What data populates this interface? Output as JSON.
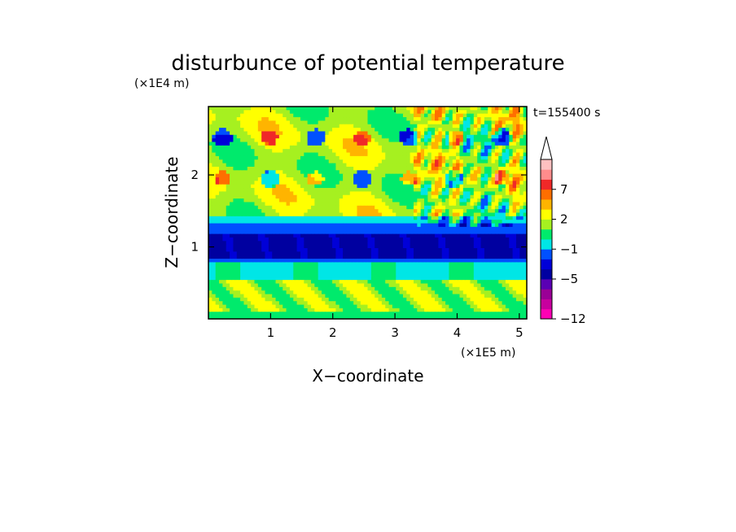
{
  "chart_data": {
    "type": "heatmap",
    "title": "disturbunce of potential temperature",
    "xlabel": "X−coordinate",
    "ylabel": "Z−coordinate",
    "x_multiplier_label": "(×1E5 m)",
    "y_multiplier_label": "(×1E4 m)",
    "time_label": "t=155400 s",
    "xlim": [
      0,
      5.12
    ],
    "ylim": [
      0,
      2.95
    ],
    "x_ticks": [
      {
        "value": 1,
        "label": "1"
      },
      {
        "value": 2,
        "label": "2"
      },
      {
        "value": 3,
        "label": "3"
      },
      {
        "value": 4,
        "label": "4"
      },
      {
        "value": 5,
        "label": "5"
      }
    ],
    "y_ticks": [
      {
        "value": 1,
        "label": "1"
      },
      {
        "value": 2,
        "label": "2"
      }
    ],
    "colorbar": {
      "extend": "max",
      "levels": [
        {
          "color": "#ff00b4",
          "label": "−12"
        },
        {
          "color": "#c8009e",
          "label": ""
        },
        {
          "color": "#9a0096",
          "label": ""
        },
        {
          "color": "#5a00b4",
          "label": ""
        },
        {
          "color": "#0000a0",
          "label": "−5"
        },
        {
          "color": "#0000d8",
          "label": ""
        },
        {
          "color": "#0050ff",
          "label": ""
        },
        {
          "color": "#00e6e6",
          "label": "−1"
        },
        {
          "color": "#00ea6c",
          "label": ""
        },
        {
          "color": "#a6f020",
          "label": ""
        },
        {
          "color": "#ffff00",
          "label": "2"
        },
        {
          "color": "#ffb400",
          "label": ""
        },
        {
          "color": "#ff6e00",
          "label": ""
        },
        {
          "color": "#f02828",
          "label": "7"
        },
        {
          "color": "#ff8c8c",
          "label": ""
        },
        {
          "color": "#ffc0c0",
          "label": ""
        }
      ]
    },
    "field": {
      "cols": 90,
      "rows": 60,
      "description_keys": [
        "background_band_z",
        "strong_negative_band_z",
        "wave_region_x"
      ],
      "background_band_z": [
        0.0,
        0.35,
        0.55,
        1.3,
        1.5,
        2.95
      ],
      "strong_negative_band_z": [
        0.85,
        1.2
      ],
      "wave_region_x": [
        3.3,
        5.12
      ]
    }
  }
}
